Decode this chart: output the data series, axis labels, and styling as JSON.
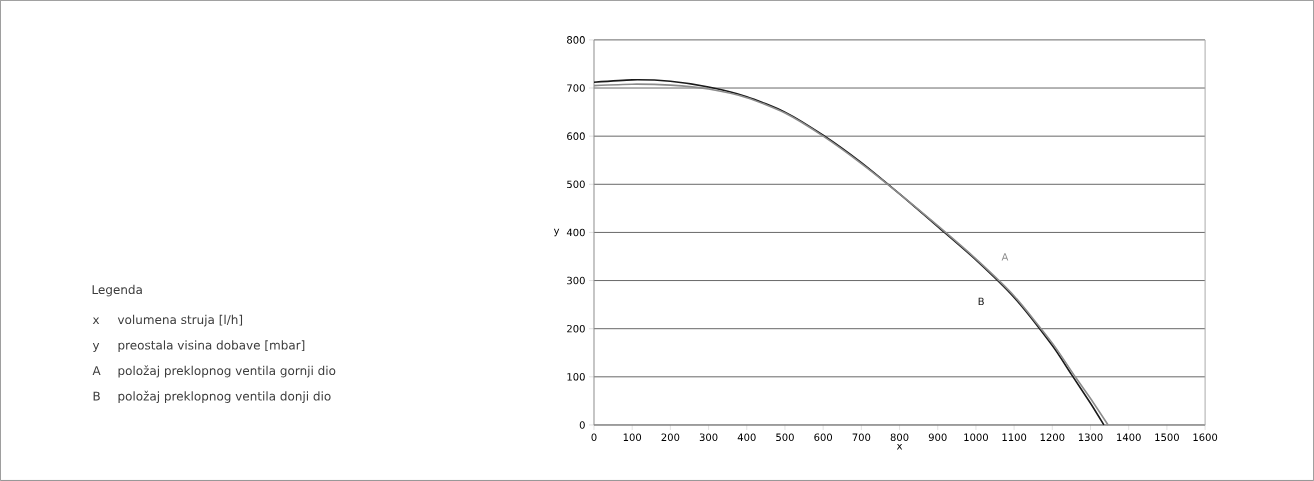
{
  "chart_data": {
    "type": "line",
    "xlabel": "x",
    "ylabel": "y",
    "xlim": [
      0,
      1600
    ],
    "ylim": [
      0,
      800
    ],
    "xticks": [
      0,
      100,
      200,
      300,
      400,
      500,
      600,
      700,
      800,
      900,
      1000,
      1100,
      1200,
      1300,
      1400,
      1500,
      1600
    ],
    "yticks": [
      0,
      100,
      200,
      300,
      400,
      500,
      600,
      700,
      800
    ],
    "grid": "y",
    "marker": "none",
    "line_style": "solid",
    "series": [
      {
        "name": "B",
        "color": "#1a1a1a",
        "x": [
          0,
          100,
          200,
          300,
          400,
          500,
          600,
          700,
          800,
          900,
          1000,
          1100,
          1200,
          1250,
          1300,
          1335
        ],
        "values": [
          712,
          717,
          714,
          702,
          682,
          650,
          602,
          545,
          480,
          412,
          343,
          265,
          165,
          105,
          45,
          0
        ]
      },
      {
        "name": "A",
        "color": "#8c8c8c",
        "x": [
          0,
          100,
          200,
          300,
          400,
          500,
          600,
          700,
          800,
          900,
          1000,
          1100,
          1200,
          1260,
          1300,
          1346
        ],
        "values": [
          705,
          708,
          706,
          698,
          680,
          648,
          600,
          543,
          480,
          414,
          345,
          268,
          170,
          100,
          55,
          0
        ]
      }
    ],
    "annotations": [
      "Legenda",
      "x",
      "volumena struja [l/h]",
      "y",
      "preostala visina dobave  [mbar]",
      "A",
      "položaj preklopnog ventila gornji dio",
      "B",
      "položaj preklopnog ventila donji dio"
    ]
  }
}
